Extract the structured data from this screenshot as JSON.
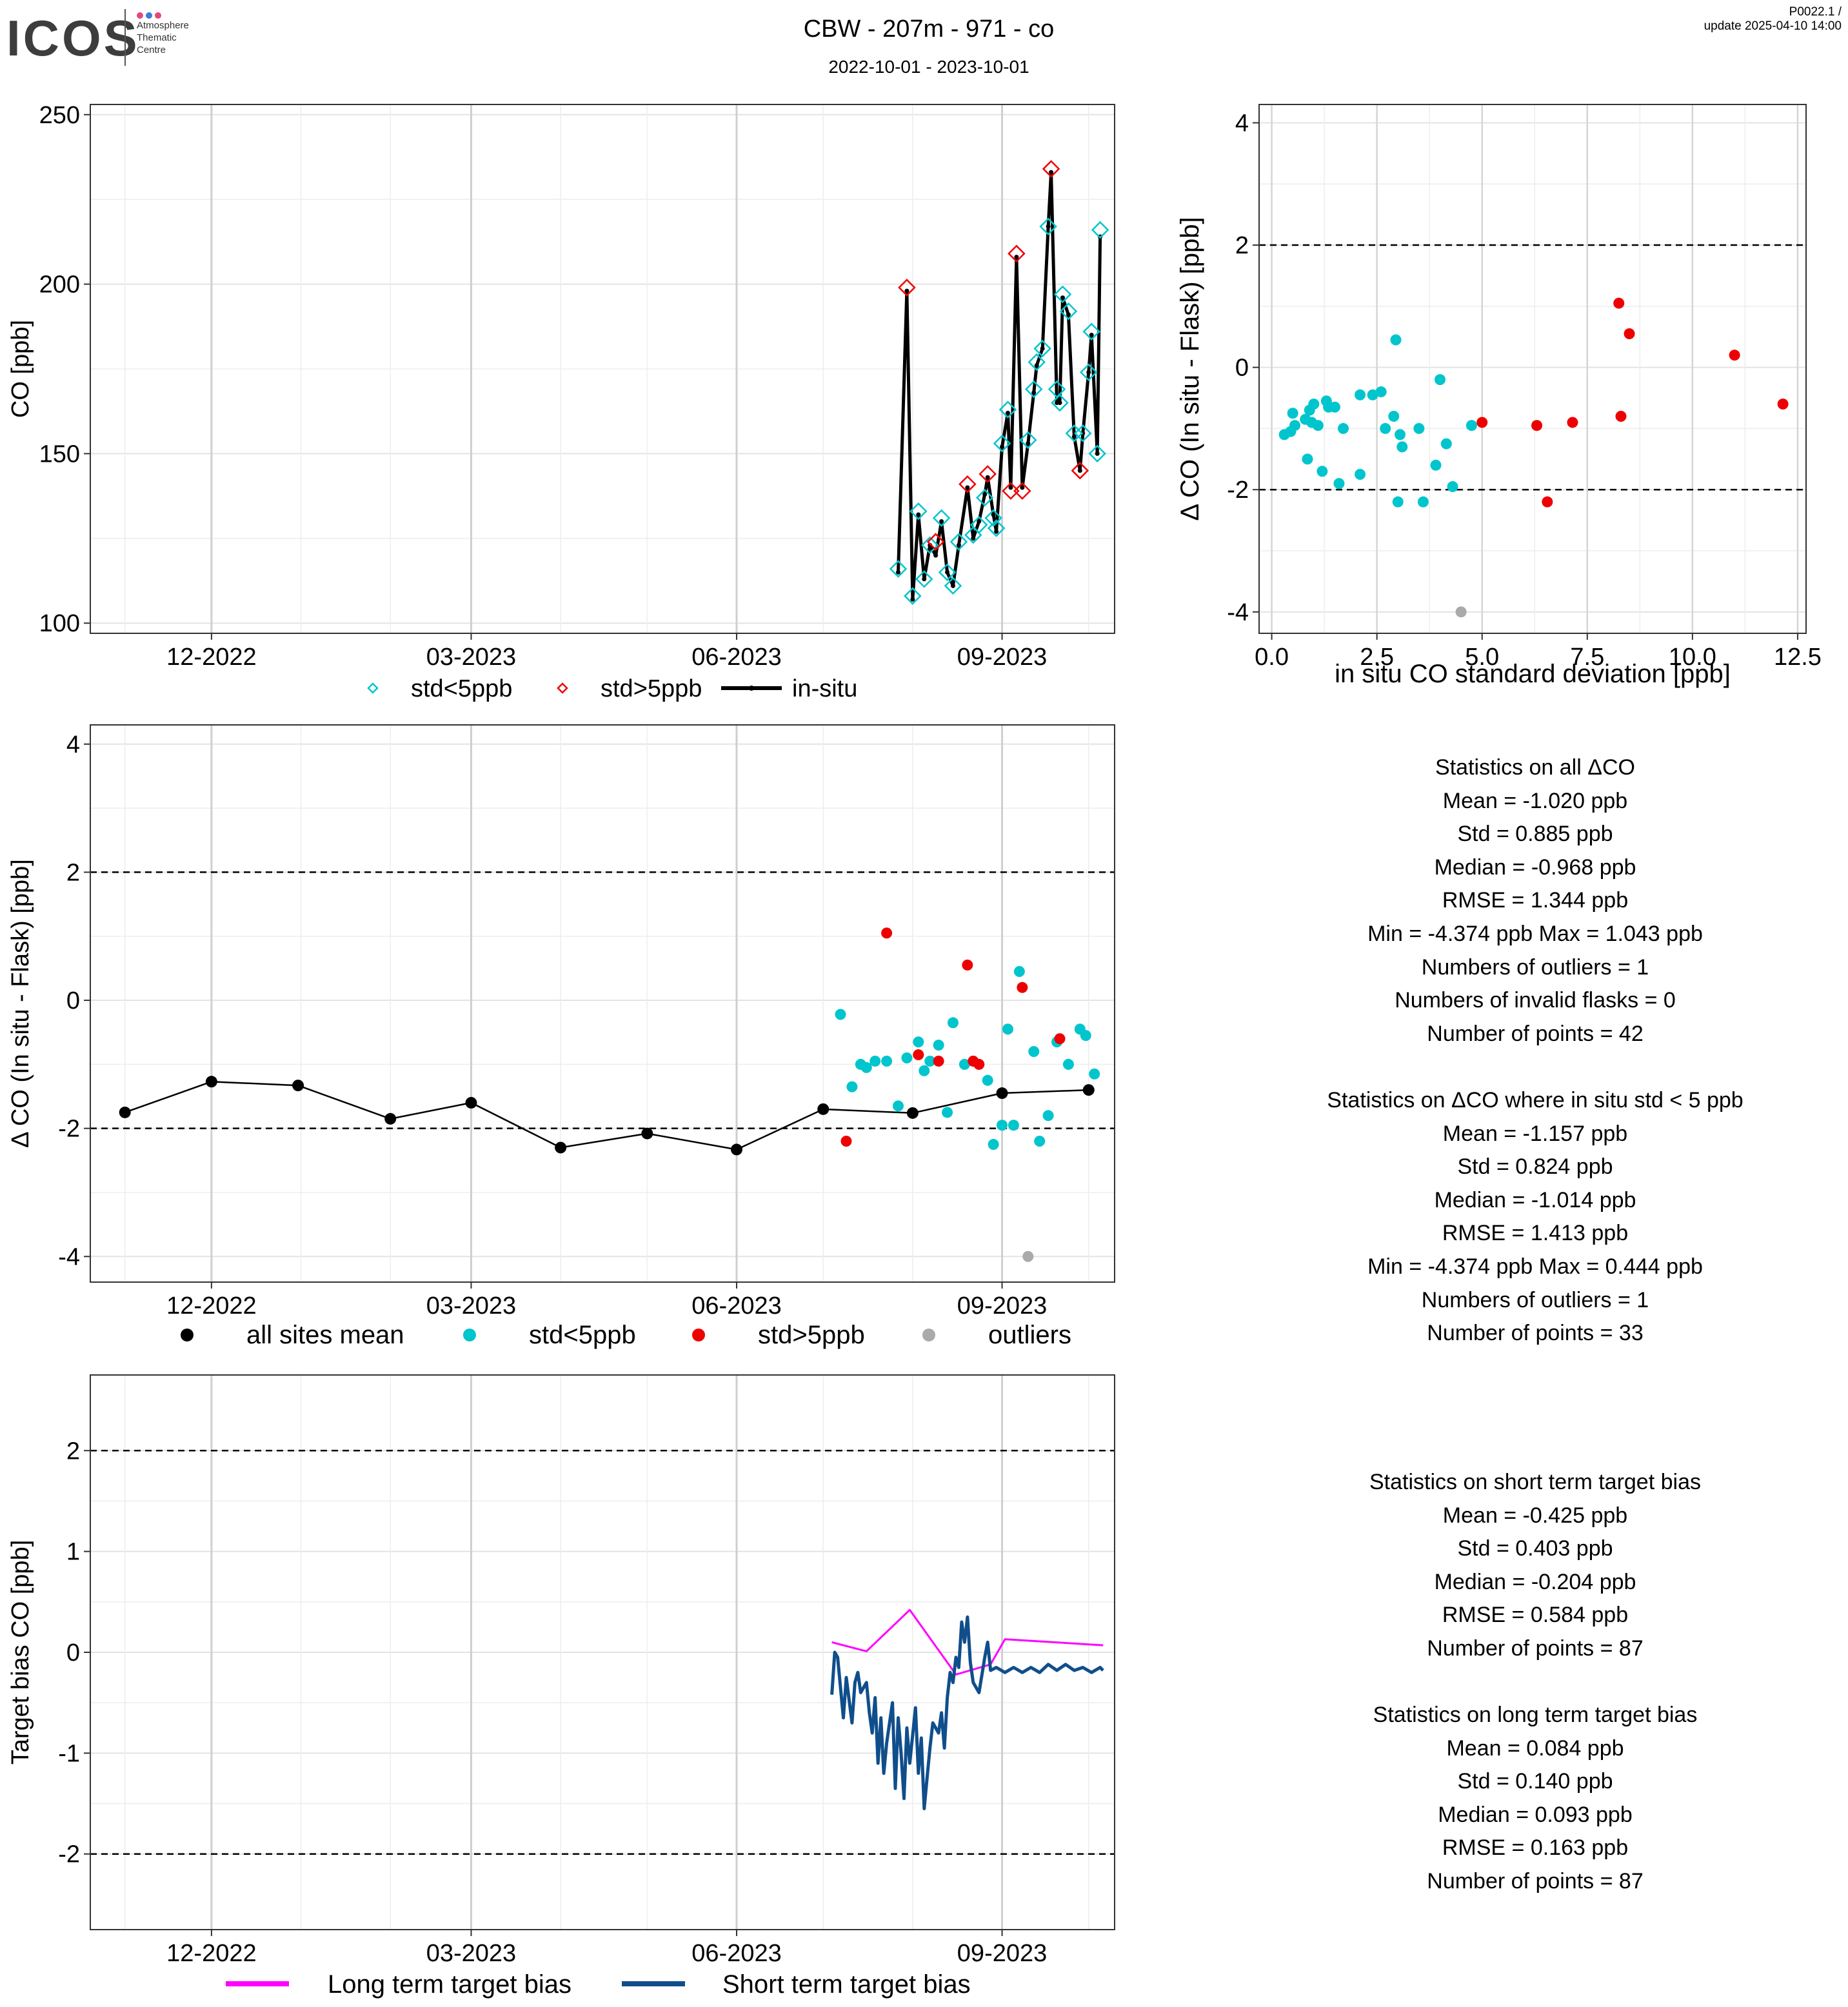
{
  "header": {
    "logo": "ICOS",
    "logo_sub": [
      "Atmosphere",
      "Thematic",
      "Centre"
    ],
    "title": "CBW - 207m - 971 - co",
    "subtitle": "2022-10-01 - 2023-10-01",
    "version": "P0022.1 /",
    "update": "update  2025-04-10 14:00"
  },
  "colors": {
    "std_lt5": "#00c5cd",
    "std_gt5": "#ee0000",
    "outliers": "#aaaaaa",
    "all_sites_mean": "#000000",
    "long_term": "#ff00ff",
    "short_term": "#104e8b"
  },
  "time_axis": {
    "ticks": [
      "12-2022",
      "03-2023",
      "06-2023",
      "09-2023"
    ],
    "tick_dates": [
      "2022-12-01",
      "2023-03-01",
      "2023-06-01",
      "2023-09-01"
    ]
  },
  "chart_data": [
    {
      "id": "co_timeseries",
      "type": "line",
      "xlabel": "",
      "ylabel": "CO [ppb]",
      "ylim": [
        97,
        253
      ],
      "yticks": [
        100,
        150,
        200,
        250
      ],
      "legend": [
        "std<5ppb",
        "std>5ppb",
        "in-situ"
      ],
      "legend_placement": "bottom",
      "insitu": [
        [
          "2023-07-27",
          115
        ],
        [
          "2023-07-30",
          198
        ],
        [
          "2023-08-01",
          107
        ],
        [
          "2023-08-03",
          132
        ],
        [
          "2023-08-05",
          113
        ],
        [
          "2023-08-07",
          123
        ],
        [
          "2023-08-09",
          120
        ],
        [
          "2023-08-11",
          130
        ],
        [
          "2023-08-13",
          115
        ],
        [
          "2023-08-15",
          111
        ],
        [
          "2023-08-17",
          123
        ],
        [
          "2023-08-20",
          140
        ],
        [
          "2023-08-22",
          125
        ],
        [
          "2023-08-24",
          130
        ],
        [
          "2023-08-26",
          138
        ],
        [
          "2023-08-27",
          143
        ],
        [
          "2023-08-29",
          132
        ],
        [
          "2023-08-30",
          127
        ],
        [
          "2023-09-01",
          152
        ],
        [
          "2023-09-03",
          162
        ],
        [
          "2023-09-04",
          140
        ],
        [
          "2023-09-06",
          208
        ],
        [
          "2023-09-08",
          140
        ],
        [
          "2023-09-10",
          153
        ],
        [
          "2023-09-12",
          168
        ],
        [
          "2023-09-13",
          176
        ],
        [
          "2023-09-15",
          181
        ],
        [
          "2023-09-17",
          217
        ],
        [
          "2023-09-18",
          233
        ],
        [
          "2023-09-20",
          165
        ],
        [
          "2023-09-21",
          165
        ],
        [
          "2023-09-22",
          196
        ],
        [
          "2023-09-24",
          191
        ],
        [
          "2023-09-26",
          155
        ],
        [
          "2023-09-28",
          145
        ],
        [
          "2023-09-29",
          156
        ],
        [
          "2023-10-01",
          174
        ],
        [
          "2023-10-02",
          185
        ],
        [
          "2023-10-04",
          150
        ],
        [
          "2023-10-05",
          214
        ]
      ],
      "flask_std_lt5": [
        [
          "2023-07-27",
          116
        ],
        [
          "2023-08-01",
          108
        ],
        [
          "2023-08-03",
          133
        ],
        [
          "2023-08-05",
          113
        ],
        [
          "2023-08-07",
          123
        ],
        [
          "2023-08-11",
          131
        ],
        [
          "2023-08-13",
          115
        ],
        [
          "2023-08-15",
          111
        ],
        [
          "2023-08-17",
          124
        ],
        [
          "2023-08-22",
          126
        ],
        [
          "2023-08-24",
          129
        ],
        [
          "2023-08-26",
          137
        ],
        [
          "2023-08-29",
          131
        ],
        [
          "2023-08-30",
          128
        ],
        [
          "2023-09-01",
          153
        ],
        [
          "2023-09-03",
          163
        ],
        [
          "2023-09-10",
          154
        ],
        [
          "2023-09-12",
          169
        ],
        [
          "2023-09-13",
          177
        ],
        [
          "2023-09-15",
          181
        ],
        [
          "2023-09-17",
          217
        ],
        [
          "2023-09-20",
          169
        ],
        [
          "2023-09-21",
          165
        ],
        [
          "2023-09-22",
          197
        ],
        [
          "2023-09-24",
          192
        ],
        [
          "2023-09-26",
          156
        ],
        [
          "2023-09-29",
          156
        ],
        [
          "2023-10-01",
          174
        ],
        [
          "2023-10-02",
          186
        ],
        [
          "2023-10-04",
          150
        ],
        [
          "2023-10-05",
          216
        ]
      ],
      "flask_std_gt5": [
        [
          "2023-07-30",
          199
        ],
        [
          "2023-08-09",
          124
        ],
        [
          "2023-08-20",
          141
        ],
        [
          "2023-08-27",
          144
        ],
        [
          "2023-09-04",
          139
        ],
        [
          "2023-09-06",
          209
        ],
        [
          "2023-09-08",
          139
        ],
        [
          "2023-09-18",
          234
        ],
        [
          "2023-09-28",
          145
        ]
      ]
    },
    {
      "id": "delta_vs_std",
      "type": "scatter",
      "xlabel": "in situ CO standard deviation [ppb]",
      "ylabel": "Δ CO (In situ - Flask) [ppb]",
      "xlim": [
        -0.3,
        12.7
      ],
      "ylim": [
        -4.35,
        4.3
      ],
      "xticks": [
        "0.0",
        "2.5",
        "5.0",
        "7.5",
        "10.0",
        "12.5"
      ],
      "yticks": [
        -4,
        -2,
        0,
        2,
        4
      ],
      "reference_lines": [
        -2,
        2
      ],
      "std_lt5": [
        [
          0.3,
          -1.1
        ],
        [
          0.45,
          -1.05
        ],
        [
          0.55,
          -0.95
        ],
        [
          0.5,
          -0.75
        ],
        [
          0.8,
          -0.85
        ],
        [
          0.9,
          -0.7
        ],
        [
          0.85,
          -1.5
        ],
        [
          0.95,
          -0.9
        ],
        [
          1.0,
          -0.6
        ],
        [
          1.1,
          -0.95
        ],
        [
          1.2,
          -1.7
        ],
        [
          1.3,
          -0.55
        ],
        [
          1.35,
          -0.65
        ],
        [
          1.5,
          -0.65
        ],
        [
          1.6,
          -1.9
        ],
        [
          1.7,
          -1.0
        ],
        [
          2.1,
          -1.75
        ],
        [
          2.1,
          -0.45
        ],
        [
          2.4,
          -0.45
        ],
        [
          2.6,
          -0.4
        ],
        [
          2.7,
          -1.0
        ],
        [
          2.9,
          -0.8
        ],
        [
          2.95,
          0.45
        ],
        [
          3.0,
          -2.2
        ],
        [
          3.05,
          -1.1
        ],
        [
          3.1,
          -1.3
        ],
        [
          3.5,
          -1.0
        ],
        [
          3.6,
          -2.2
        ],
        [
          3.9,
          -1.6
        ],
        [
          4.0,
          -0.2
        ],
        [
          4.15,
          -1.25
        ],
        [
          4.3,
          -1.95
        ],
        [
          4.75,
          -0.95
        ]
      ],
      "std_gt5": [
        [
          5.0,
          -0.9
        ],
        [
          6.3,
          -0.95
        ],
        [
          6.55,
          -2.2
        ],
        [
          7.15,
          -0.9
        ],
        [
          8.25,
          1.05
        ],
        [
          8.3,
          -0.8
        ],
        [
          8.5,
          0.55
        ],
        [
          11.0,
          0.2
        ],
        [
          12.15,
          -0.6
        ]
      ],
      "outliers": [
        [
          4.5,
          -4.0
        ]
      ]
    },
    {
      "id": "delta_timeseries",
      "type": "scatter",
      "xlabel": "",
      "ylabel": "Δ CO (In situ - Flask) [ppb]",
      "ylim": [
        -4.4,
        4.3
      ],
      "yticks": [
        -4,
        -2,
        0,
        2,
        4
      ],
      "reference_lines": [
        -2,
        2
      ],
      "legend": [
        "all sites mean",
        "std<5ppb",
        "std>5ppb",
        "outliers"
      ],
      "legend_placement": "bottom",
      "all_sites_mean": [
        [
          "2022-11-01",
          -1.75
        ],
        [
          "2022-12-01",
          -1.27
        ],
        [
          "2022-12-31",
          -1.33
        ],
        [
          "2023-02-01",
          -1.85
        ],
        [
          "2023-03-01",
          -1.6
        ],
        [
          "2023-04-01",
          -2.3
        ],
        [
          "2023-05-01",
          -2.08
        ],
        [
          "2023-06-01",
          -2.33
        ],
        [
          "2023-07-01",
          -1.7
        ],
        [
          "2023-08-01",
          -1.76
        ],
        [
          "2023-09-01",
          -1.45
        ],
        [
          "2023-10-01",
          -1.4
        ]
      ],
      "std_lt5": [
        [
          "2023-07-07",
          -0.22
        ],
        [
          "2023-07-11",
          -1.35
        ],
        [
          "2023-07-14",
          -1.0
        ],
        [
          "2023-07-16",
          -1.05
        ],
        [
          "2023-07-19",
          -0.95
        ],
        [
          "2023-07-23",
          -0.95
        ],
        [
          "2023-07-27",
          -1.65
        ],
        [
          "2023-07-30",
          -0.9
        ],
        [
          "2023-08-03",
          -0.65
        ],
        [
          "2023-08-05",
          -1.1
        ],
        [
          "2023-08-07",
          -0.95
        ],
        [
          "2023-08-10",
          -0.7
        ],
        [
          "2023-08-13",
          -1.75
        ],
        [
          "2023-08-15",
          -0.35
        ],
        [
          "2023-08-19",
          -1.0
        ],
        [
          "2023-08-22",
          -0.95
        ],
        [
          "2023-08-27",
          -1.25
        ],
        [
          "2023-08-29",
          -2.25
        ],
        [
          "2023-09-01",
          -1.95
        ],
        [
          "2023-09-03",
          -0.45
        ],
        [
          "2023-09-05",
          -1.95
        ],
        [
          "2023-09-07",
          0.45
        ],
        [
          "2023-09-12",
          -0.8
        ],
        [
          "2023-09-14",
          -2.2
        ],
        [
          "2023-09-17",
          -1.8
        ],
        [
          "2023-09-20",
          -0.65
        ],
        [
          "2023-09-24",
          -1.0
        ],
        [
          "2023-09-28",
          -0.45
        ],
        [
          "2023-09-30",
          -0.55
        ],
        [
          "2023-10-03",
          -1.15
        ]
      ],
      "std_gt5": [
        [
          "2023-07-09",
          -2.2
        ],
        [
          "2023-07-23",
          1.05
        ],
        [
          "2023-08-03",
          -0.85
        ],
        [
          "2023-08-10",
          -0.95
        ],
        [
          "2023-08-20",
          0.55
        ],
        [
          "2023-08-22",
          -0.95
        ],
        [
          "2023-08-24",
          -1.0
        ],
        [
          "2023-09-08",
          0.2
        ],
        [
          "2023-09-21",
          -0.6
        ]
      ],
      "outliers": [
        [
          "2023-09-10",
          -4.0
        ]
      ]
    },
    {
      "id": "target_bias",
      "type": "line",
      "xlabel": "",
      "ylabel": "Target bias CO [ppb]",
      "ylim": [
        -2.75,
        2.75
      ],
      "yticks": [
        -2,
        -1,
        0,
        1,
        2
      ],
      "reference_lines": [
        -2,
        2
      ],
      "legend": [
        "Long term target bias",
        "Short term target bias"
      ],
      "legend_placement": "bottom",
      "series": [
        {
          "name": "Long term target bias",
          "points": [
            [
              "2023-07-04",
              0.1
            ],
            [
              "2023-07-16",
              0.01
            ],
            [
              "2023-07-31",
              0.42
            ],
            [
              "2023-08-16",
              -0.22
            ],
            [
              "2023-08-28",
              -0.12
            ],
            [
              "2023-09-02",
              0.13
            ],
            [
              "2023-10-06",
              0.07
            ]
          ]
        },
        {
          "name": "Short term target bias",
          "points": [
            [
              "2023-07-04",
              -0.42
            ],
            [
              "2023-07-05",
              0.0
            ],
            [
              "2023-07-06",
              -0.05
            ],
            [
              "2023-07-08",
              -0.65
            ],
            [
              "2023-07-09",
              -0.25
            ],
            [
              "2023-07-11",
              -0.7
            ],
            [
              "2023-07-12",
              -0.3
            ],
            [
              "2023-07-13",
              -0.2
            ],
            [
              "2023-07-14",
              -0.4
            ],
            [
              "2023-07-16",
              -0.3
            ],
            [
              "2023-07-17",
              -0.6
            ],
            [
              "2023-07-18",
              -0.8
            ],
            [
              "2023-07-19",
              -0.45
            ],
            [
              "2023-07-20",
              -1.1
            ],
            [
              "2023-07-21",
              -0.65
            ],
            [
              "2023-07-22",
              -1.2
            ],
            [
              "2023-07-23",
              -0.9
            ],
            [
              "2023-07-25",
              -0.5
            ],
            [
              "2023-07-26",
              -1.35
            ],
            [
              "2023-07-27",
              -0.65
            ],
            [
              "2023-07-28",
              -1.0
            ],
            [
              "2023-07-29",
              -1.45
            ],
            [
              "2023-07-30",
              -0.75
            ],
            [
              "2023-07-31",
              -1.1
            ],
            [
              "2023-08-02",
              -0.55
            ],
            [
              "2023-08-03",
              -1.2
            ],
            [
              "2023-08-04",
              -0.85
            ],
            [
              "2023-08-05",
              -1.55
            ],
            [
              "2023-08-06",
              -1.25
            ],
            [
              "2023-08-07",
              -0.95
            ],
            [
              "2023-08-08",
              -0.7
            ],
            [
              "2023-08-10",
              -0.8
            ],
            [
              "2023-08-11",
              -0.6
            ],
            [
              "2023-08-12",
              -0.95
            ],
            [
              "2023-08-13",
              -0.45
            ],
            [
              "2023-08-14",
              -0.2
            ],
            [
              "2023-08-15",
              -0.3
            ],
            [
              "2023-08-16",
              -0.05
            ],
            [
              "2023-08-17",
              -0.15
            ],
            [
              "2023-08-18",
              0.3
            ],
            [
              "2023-08-19",
              0.1
            ],
            [
              "2023-08-20",
              0.35
            ],
            [
              "2023-08-21",
              -0.1
            ],
            [
              "2023-08-22",
              -0.3
            ],
            [
              "2023-08-24",
              -0.4
            ],
            [
              "2023-08-26",
              -0.05
            ],
            [
              "2023-08-27",
              0.1
            ],
            [
              "2023-08-28",
              -0.18
            ],
            [
              "2023-08-30",
              -0.15
            ],
            [
              "2023-09-02",
              -0.2
            ],
            [
              "2023-09-05",
              -0.15
            ],
            [
              "2023-09-08",
              -0.2
            ],
            [
              "2023-09-11",
              -0.15
            ],
            [
              "2023-09-14",
              -0.2
            ],
            [
              "2023-09-17",
              -0.12
            ],
            [
              "2023-09-20",
              -0.18
            ],
            [
              "2023-09-23",
              -0.12
            ],
            [
              "2023-09-26",
              -0.18
            ],
            [
              "2023-09-29",
              -0.15
            ],
            [
              "2023-10-02",
              -0.2
            ],
            [
              "2023-10-05",
              -0.15
            ],
            [
              "2023-10-06",
              -0.18
            ]
          ]
        }
      ]
    }
  ],
  "stats": {
    "all": {
      "heading": "Statistics on all ΔCO",
      "lines": [
        "Mean =  -1.020 ppb",
        "Std =  0.885 ppb",
        "Median =  -0.968 ppb",
        "RMSE =  1.344 ppb",
        "Min =  -4.374 ppb Max =  1.043 ppb",
        "Numbers of outliers =  1",
        "Numbers of invalid flasks =  0",
        "Number of points =  42"
      ]
    },
    "std_lt5": {
      "heading": "Statistics on ΔCO where in situ std < 5 ppb",
      "lines": [
        "Mean =  -1.157 ppb",
        "Std =  0.824 ppb",
        "Median =  -1.014 ppb",
        "RMSE =  1.413 ppb",
        "Min =  -4.374 ppb Max =  0.444 ppb",
        "Numbers of outliers =  1",
        "Number of points =  33"
      ]
    },
    "short_term": {
      "heading": "Statistics on short term target bias",
      "lines": [
        "Mean =  -0.425 ppb",
        "Std =  0.403 ppb",
        "Median =  -0.204 ppb",
        "RMSE =  0.584 ppb",
        "Number of points =  87"
      ]
    },
    "long_term": {
      "heading": "Statistics on long term target bias",
      "lines": [
        "Mean =  0.084 ppb",
        "Std =  0.140 ppb",
        "Median =  0.093 ppb",
        "RMSE =  0.163 ppb",
        "Number of points =  87"
      ]
    }
  }
}
